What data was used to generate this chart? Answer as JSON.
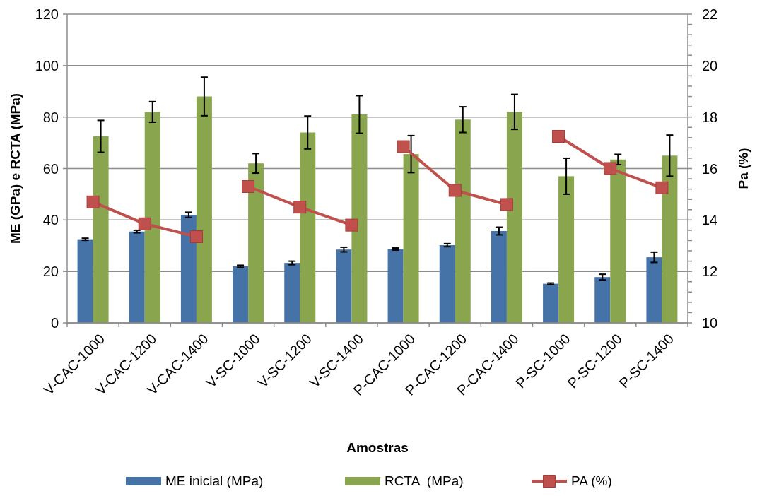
{
  "chart_data": {
    "type": "bar",
    "xlabel": "Amostras",
    "ylabel": "ME (GPa) e RCTA (MPa)",
    "y2label": "Pa (%)",
    "categories": [
      "V-CAC-1000",
      "V-CAC-1200",
      "V-CAC-1400",
      "V-SC-1000",
      "V-SC-1200",
      "V-SC-1400",
      "P-CAC-1000",
      "P-CAC-1200",
      "P-CAC-1400",
      "P-SC-1000",
      "P-SC-1200",
      "P-SC-1400"
    ],
    "series": [
      {
        "name": "ME inicial (MPa)",
        "color": "#4572a7",
        "values": [
          32.5,
          35.5,
          42,
          22,
          23.3,
          28.5,
          28.7,
          30.2,
          35.7,
          15.2,
          17.8,
          25.5
        ],
        "errors": [
          0.4,
          0.5,
          1,
          0.4,
          0.7,
          0.9,
          0.4,
          0.6,
          1.5,
          0.3,
          1.1,
          2
        ]
      },
      {
        "name": "RCTA  (MPa)",
        "color": "#89a54e",
        "values": [
          72.5,
          82,
          88,
          62,
          74,
          81,
          65.6,
          79,
          82,
          57,
          63.5,
          65
        ],
        "errors": [
          6.2,
          4,
          7.5,
          3.8,
          6.4,
          7.3,
          7.2,
          5,
          6.8,
          7,
          2,
          8
        ]
      },
      {
        "name": "PA (%)",
        "type": "line",
        "axis": "y2",
        "color": "#c0504d",
        "marker": "square",
        "x": [
          "V-CAC-1000",
          "V-CAC-1200",
          "V-CAC-1400"
        ],
        "values": [
          14.7,
          13.85,
          13.35
        ]
      },
      {
        "type": "line",
        "axis": "y2",
        "color": "#c1504d",
        "marker": "square",
        "x": [
          "V-SC-1000",
          "V-SC-1200",
          "V-SC-1400"
        ],
        "values": [
          15.3,
          14.5,
          13.8
        ]
      },
      {
        "type": "line",
        "axis": "y2",
        "color": "#c0514d",
        "marker": "square",
        "x": [
          "P-CAC-1000",
          "P-CAC-1200",
          "P-CAC-1400"
        ],
        "values": [
          16.85,
          15.15,
          14.6
        ]
      },
      {
        "type": "line",
        "axis": "y2",
        "color": "#c0504e",
        "marker": "square",
        "x": [
          "P-SC-1000",
          "P-SC-1200",
          "P-SC-1400"
        ],
        "values": [
          17.25,
          16,
          15.25
        ]
      }
    ],
    "ylim": [
      0,
      120
    ],
    "yticks": [
      0,
      20,
      40,
      60,
      80,
      100,
      120
    ],
    "y2lim": [
      10,
      22
    ],
    "y2ticks": [
      10,
      {
        "value": 10.4,
        "label": null
      },
      {
        "value": 10.8,
        "label": null
      },
      {
        "value": 11.2,
        "label": null
      },
      {
        "value": 11.6,
        "label": null
      },
      12,
      {
        "value": 12.4,
        "label": null
      },
      {
        "value": 12.8,
        "label": null
      },
      {
        "value": 13.2,
        "label": null
      },
      {
        "value": 13.6,
        "label": null
      },
      14,
      {
        "value": 14.4,
        "label": null
      },
      {
        "value": 14.8,
        "label": null
      },
      {
        "value": 15.2,
        "label": null
      },
      {
        "value": 15.6,
        "label": null
      },
      16,
      {
        "value": 16.4,
        "label": null
      },
      {
        "value": 16.8,
        "label": null
      },
      {
        "value": 17.2,
        "label": null
      },
      {
        "value": 17.6,
        "label": null
      },
      18,
      {
        "value": 18.4,
        "label": null
      },
      {
        "value": 18.8,
        "label": null
      },
      {
        "value": 19.2,
        "label": null
      },
      {
        "value": 19.6,
        "label": null
      },
      20,
      {
        "value": 20.4,
        "label": null
      },
      {
        "value": 20.8,
        "label": null
      },
      {
        "value": 21.2,
        "label": null
      },
      {
        "value": 21.6,
        "label": null
      },
      22
    ],
    "grid": "y",
    "legend": "bottom"
  }
}
